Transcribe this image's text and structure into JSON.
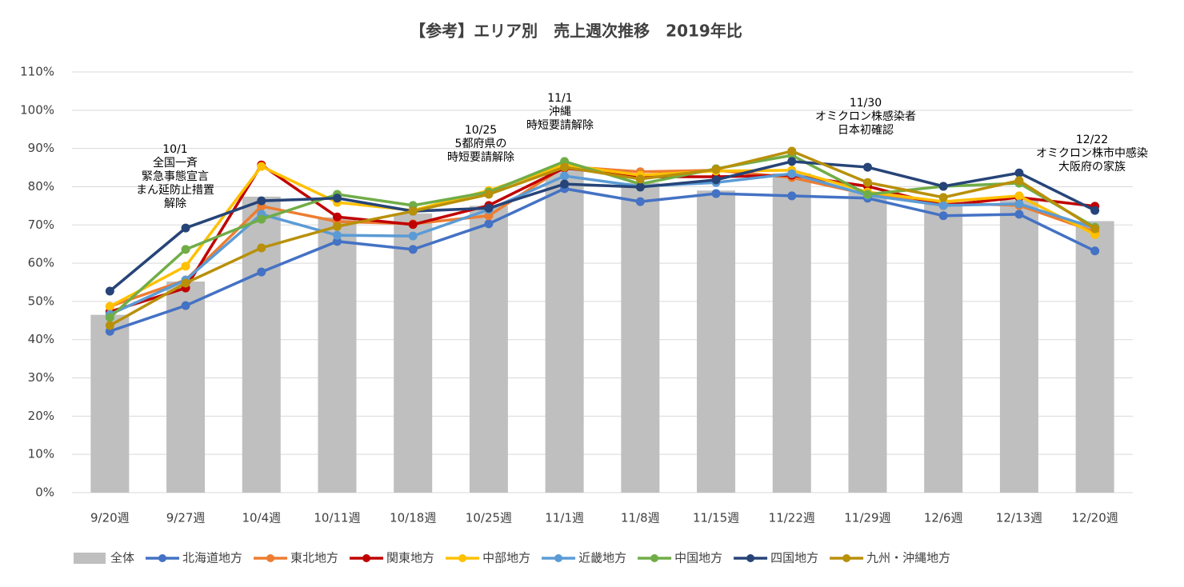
{
  "chart_data": {
    "type": "combo",
    "title": "【参考】エリア別　売上週次推移　2019年比",
    "categories": [
      "9/20週",
      "9/27週",
      "10/4週",
      "10/11週",
      "10/18週",
      "10/25週",
      "11/1週",
      "11/8週",
      "11/15週",
      "11/22週",
      "11/29週",
      "12/6週",
      "12/13週",
      "12/20週"
    ],
    "ylim": [
      0,
      110
    ],
    "yticks": [
      {
        "value": 0,
        "label": "0%"
      },
      {
        "value": 10,
        "label": "10%"
      },
      {
        "value": 20,
        "label": "20%"
      },
      {
        "value": 30,
        "label": "30%"
      },
      {
        "value": 40,
        "label": "40%"
      },
      {
        "value": 50,
        "label": "50%"
      },
      {
        "value": 60,
        "label": "60%"
      },
      {
        "value": 70,
        "label": "70%"
      },
      {
        "value": 80,
        "label": "80%"
      },
      {
        "value": 90,
        "label": "90%"
      },
      {
        "value": 100,
        "label": "100%"
      },
      {
        "value": 110,
        "label": "110%"
      }
    ],
    "grid": true,
    "legend": "bottom",
    "series": [
      {
        "name": "全体",
        "type": "bar",
        "color": "#bfbfbf",
        "values": [
          46.5,
          55.2,
          77.4,
          72,
          73,
          75,
          85,
          81,
          79,
          83.5,
          78.6,
          76,
          76.5,
          71
        ]
      },
      {
        "name": "北海道地方",
        "type": "line",
        "color": "#4472c4",
        "values": [
          42.2,
          48.9,
          57.7,
          65.7,
          63.6,
          70.3,
          79.5,
          76.1,
          78.2,
          77.6,
          77,
          72.4,
          72.8,
          63.2
        ]
      },
      {
        "name": "東北地方",
        "type": "line",
        "color": "#ed7d31",
        "values": [
          48.7,
          55.6,
          74.9,
          70.9,
          70.3,
          72.4,
          85.3,
          83.9,
          84.3,
          82.4,
          78,
          75.7,
          75.1,
          68.2
        ]
      },
      {
        "name": "関東地方",
        "type": "line",
        "color": "#c00000",
        "values": [
          47.3,
          53.5,
          85.7,
          72.1,
          70.1,
          75.1,
          84.9,
          82.6,
          82.6,
          83,
          80.1,
          75.1,
          77.2,
          74.9
        ]
      },
      {
        "name": "中部地方",
        "type": "line",
        "color": "#ffc000",
        "values": [
          48.7,
          59.2,
          85.3,
          75.9,
          73.8,
          79,
          85.7,
          83,
          84.1,
          84.3,
          78.6,
          76.1,
          77.6,
          67.5
        ]
      },
      {
        "name": "近畿地方",
        "type": "line",
        "color": "#5b9bd5",
        "values": [
          46.6,
          55.6,
          72.8,
          67.3,
          67.1,
          74,
          82.8,
          80.1,
          81.1,
          83.4,
          77.8,
          75.1,
          75.5,
          69.2
        ]
      },
      {
        "name": "中国地方",
        "type": "line",
        "color": "#70ad47",
        "values": [
          45.8,
          63.6,
          71.5,
          78,
          75.1,
          78.6,
          86.6,
          80.7,
          84.7,
          88.2,
          78,
          80.1,
          80.9,
          69.4
        ]
      },
      {
        "name": "四国地方",
        "type": "line",
        "color": "#264478",
        "values": [
          52.7,
          69.2,
          76.3,
          77,
          73.6,
          74.4,
          80.7,
          79.9,
          81.8,
          86.6,
          85.1,
          80.1,
          83.6,
          73.8
        ]
      },
      {
        "name": "九州・沖縄地方",
        "type": "line",
        "color": "#b8900a",
        "values": [
          43.7,
          54.8,
          64,
          69.6,
          73.6,
          78,
          85.1,
          82,
          84.5,
          89.3,
          81.1,
          77.2,
          81.6,
          69
        ]
      }
    ],
    "annotations": [
      {
        "lines": [
          "10/1",
          "全国一斉",
          "緊急事態宣言",
          "まん延防止措置",
          "解除"
        ]
      },
      {
        "lines": [
          "10/25",
          "5都府県の",
          "時短要請解除"
        ]
      },
      {
        "lines": [
          "11/1",
          "沖縄",
          "時短要請解除"
        ]
      },
      {
        "lines": [
          "11/30",
          "オミクロン株感染者",
          "日本初確認"
        ]
      },
      {
        "lines": [
          "12/22",
          "オミクロン株市中感染",
          "大阪府の家族"
        ]
      }
    ]
  }
}
